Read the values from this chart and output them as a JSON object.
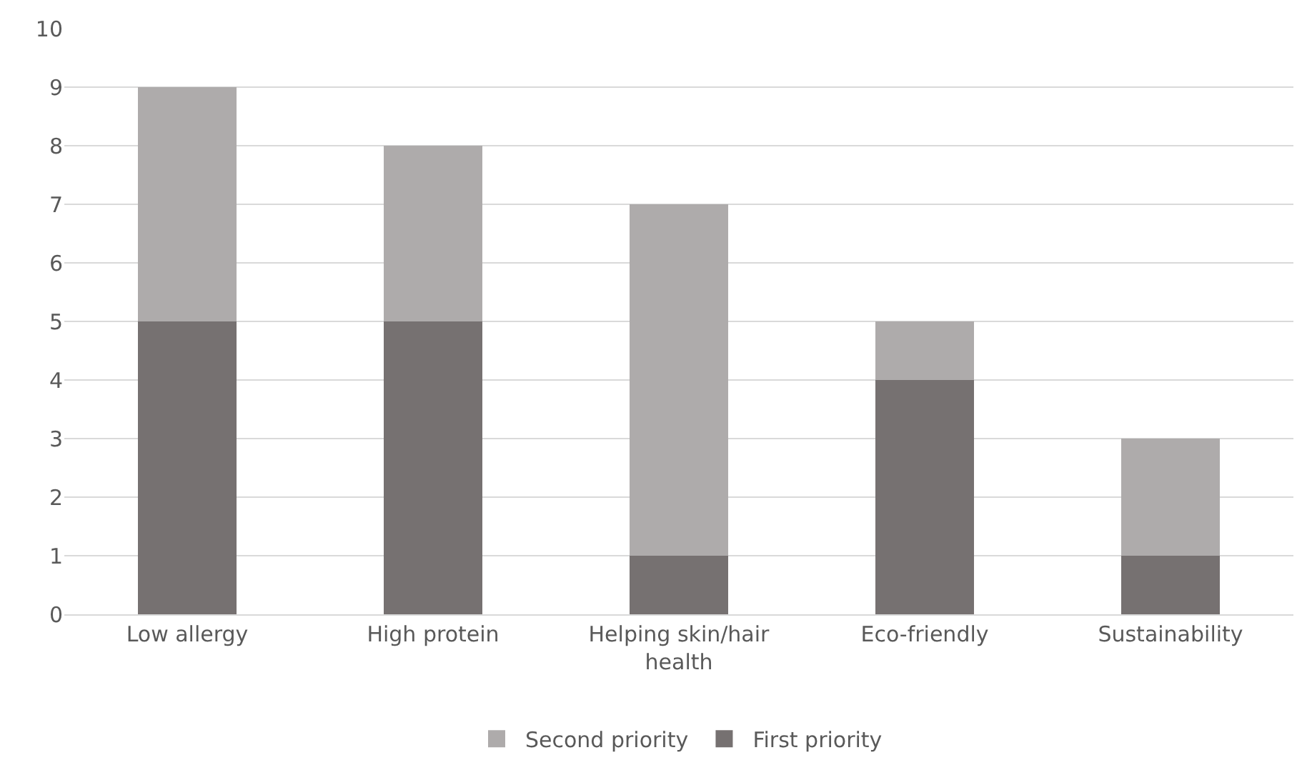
{
  "chart_data": {
    "type": "bar",
    "stacked": true,
    "categories": [
      "Low allergy",
      "High protein",
      "Helping skin/hair health",
      "Eco-friendly",
      "Sustainability"
    ],
    "series": [
      {
        "name": "First priority",
        "color": "#767171",
        "values": [
          5,
          5,
          1,
          4,
          1
        ]
      },
      {
        "name": "Second priority",
        "color": "#aeabab",
        "values": [
          4,
          3,
          6,
          1,
          2
        ]
      }
    ],
    "ylim": [
      0,
      10
    ],
    "yticks": [
      0,
      1,
      2,
      3,
      4,
      5,
      6,
      7,
      8,
      9,
      10
    ],
    "grid": "y",
    "legend": "bottom"
  }
}
